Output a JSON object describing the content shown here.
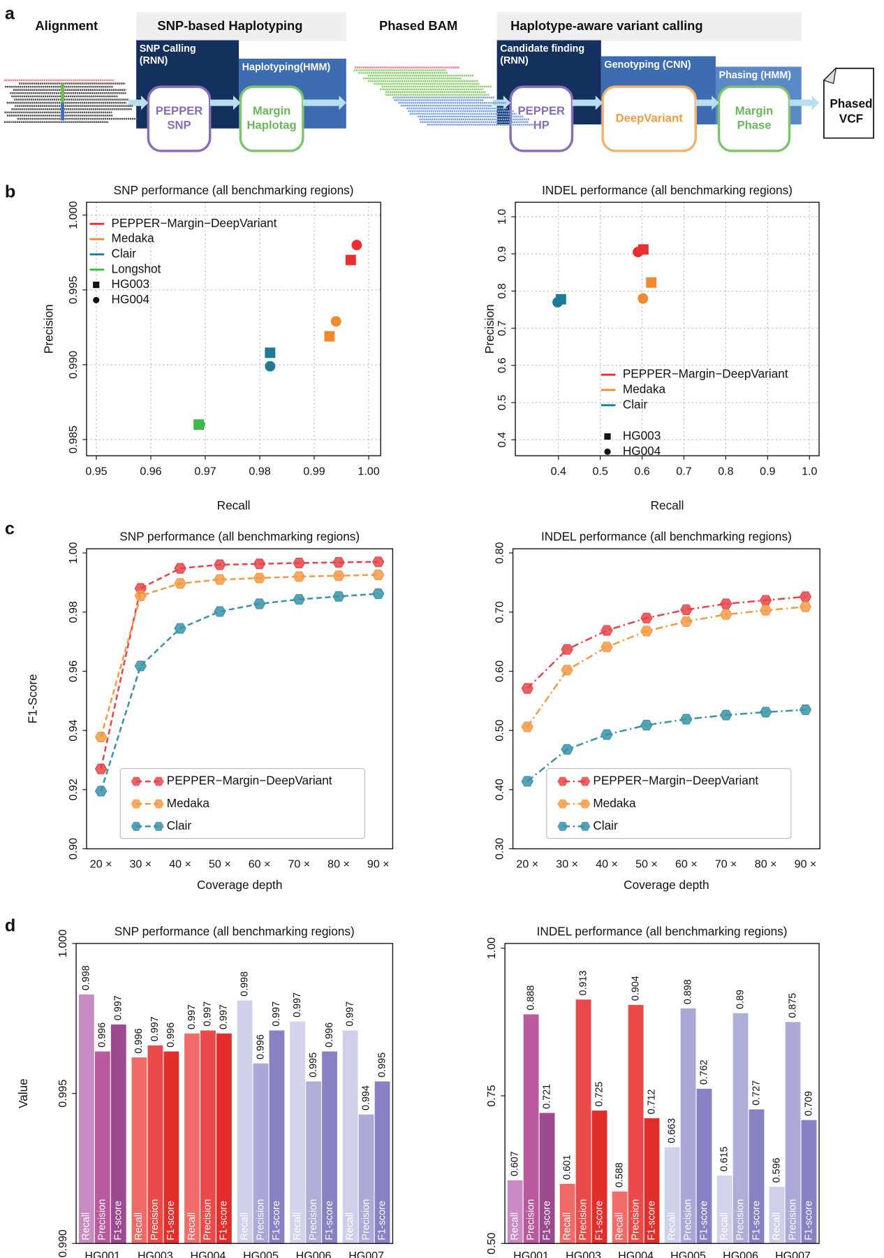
{
  "panel_labels": [
    "a",
    "b",
    "c",
    "d"
  ],
  "diagram": {
    "headers": [
      "Alignment",
      "SNP-based Haplotyping",
      "Phased BAM",
      "Haplotype-aware variant calling"
    ],
    "steps": [
      [
        "SNP Calling",
        "(RNN)"
      ],
      [
        "Haplotyping(HMM)"
      ],
      [
        "Candidate finding",
        "(RNN)"
      ],
      [
        "Genotyping (CNN)"
      ],
      [
        "Phasing (HMM)"
      ]
    ],
    "tools": [
      [
        "PEPPER",
        "SNP"
      ],
      [
        "Margin",
        "Haplotag"
      ],
      [
        "PEPPER",
        "HP"
      ],
      [
        "DeepVariant"
      ],
      [
        "Margin",
        "Phase"
      ]
    ],
    "output": [
      "Phased",
      "VCF"
    ]
  },
  "chart_data": [
    {
      "type": "scatter",
      "title": "SNP performance (all benchmarking regions)",
      "x_label": "Recall",
      "y_label": "Precision",
      "xlim": [
        0.9482,
        1.0022
      ],
      "ylim": [
        0.98392,
        1.00086
      ],
      "xticks": [
        0.95,
        0.96,
        0.97,
        0.98,
        0.99,
        {
          "value": 1,
          "label": "1.00"
        }
      ],
      "yticks": [
        0.985,
        {
          "value": 0.99,
          "label": "0.990"
        },
        0.995,
        {
          "value": 1,
          "label": "1.000"
        }
      ],
      "grid": true,
      "legend": "upper left",
      "series": [
        {
          "name": "PEPPER−Margin−DeepVariant",
          "color": "#e8312f",
          "x": [
            0.9967,
            0.9978
          ],
          "values": [
            0.997,
            0.998
          ]
        },
        {
          "name": "Medaka",
          "color": "#f08a2c",
          "x": [
            0.9928,
            0.994
          ],
          "values": [
            0.9919,
            0.9929
          ]
        },
        {
          "name": "Clair",
          "color": "#1f7a94",
          "x": [
            0.9819,
            0.9819
          ],
          "values": [
            0.9908,
            0.9899
          ]
        },
        {
          "name": "Longshot",
          "color": "#3cb94a",
          "x": [
            0.9688,
            0.969
          ],
          "values": [
            0.986,
            0.986
          ]
        }
      ],
      "markers": [
        {
          "name": "HG003",
          "shape": "square"
        },
        {
          "name": "HG004",
          "shape": "circle"
        }
      ]
    },
    {
      "type": "scatter",
      "title": "INDEL performance (all benchmarking regions)",
      "x_label": "Recall",
      "y_label": "Precision",
      "xlim": [
        0.297,
        1.023
      ],
      "ylim": [
        0.357,
        1.039
      ],
      "xticks": [
        0.4,
        0.5,
        0.6,
        0.7,
        0.8,
        0.9,
        {
          "value": 1,
          "label": "1.0"
        }
      ],
      "yticks": [
        0.4,
        0.5,
        0.6,
        0.7,
        0.8,
        0.9,
        {
          "value": 1,
          "label": "1.0"
        }
      ],
      "grid": true,
      "legend": "lower right",
      "series": [
        {
          "name": "PEPPER−Margin−DeepVariant",
          "color": "#e8312f",
          "x": [
            0.603,
            0.59
          ],
          "values": [
            0.912,
            0.905
          ]
        },
        {
          "name": "Medaka",
          "color": "#f08a2c",
          "x": [
            0.622,
            0.602
          ],
          "values": [
            0.823,
            0.78
          ]
        },
        {
          "name": "Clair",
          "color": "#1f7a94",
          "x": [
            0.406,
            0.398
          ],
          "values": [
            0.778,
            0.77
          ]
        }
      ],
      "markers": [
        {
          "name": "HG003",
          "shape": "square"
        },
        {
          "name": "HG004",
          "shape": "circle"
        }
      ]
    },
    {
      "type": "line",
      "title": "SNP performance (all benchmarking regions)",
      "x_label": "Coverage depth",
      "y_label": "F1-Score",
      "categories": [
        "20 ×",
        "30 ×",
        "40 ×",
        "50 ×",
        "60 ×",
        "70 ×",
        "80 ×",
        "90 ×"
      ],
      "ylim": [
        0.9,
        1.0014
      ],
      "yticks": [
        {
          "value": 0.9,
          "label": "0.90"
        },
        0.92,
        0.94,
        0.96,
        0.98,
        {
          "value": 1,
          "label": "1.00"
        }
      ],
      "line_style": "dashed",
      "legend": "lower left",
      "series": [
        {
          "name": "PEPPER−Margin−DeepVariant",
          "color": "#e5454a",
          "values": [
            0.927,
            0.988,
            0.9948,
            0.996,
            0.9963,
            0.9966,
            0.9968,
            0.997
          ]
        },
        {
          "name": "Medaka",
          "color": "#f39a45",
          "values": [
            0.9378,
            0.9855,
            0.9897,
            0.991,
            0.9915,
            0.992,
            0.9923,
            0.9926
          ]
        },
        {
          "name": "Clair",
          "color": "#3a93a9",
          "values": [
            0.9195,
            0.9618,
            0.9745,
            0.9802,
            0.9828,
            0.9843,
            0.9853,
            0.9862
          ]
        }
      ]
    },
    {
      "type": "line",
      "title": "INDEL performance (all benchmarking regions)",
      "x_label": "Coverage depth",
      "categories": [
        "20 ×",
        "30 ×",
        "40 ×",
        "50 ×",
        "60 ×",
        "70 ×",
        "80 ×",
        "90 ×"
      ],
      "ylim": [
        0.3,
        0.807
      ],
      "yticks": [
        {
          "value": 0.3,
          "label": "0.30"
        },
        {
          "value": 0.4,
          "label": "0.40"
        },
        {
          "value": 0.5,
          "label": "0.50"
        },
        {
          "value": 0.6,
          "label": "0.60"
        },
        {
          "value": 0.7,
          "label": "0.70"
        },
        {
          "value": 0.8,
          "label": "0.80"
        }
      ],
      "line_style": "dash-dot",
      "legend": "lower left",
      "series": [
        {
          "name": "PEPPER−Margin−DeepVariant",
          "color": "#e5454a",
          "values": [
            0.571,
            0.637,
            0.669,
            0.69,
            0.704,
            0.714,
            0.72,
            0.726
          ]
        },
        {
          "name": "Medaka",
          "color": "#f39a45",
          "values": [
            0.506,
            0.602,
            0.641,
            0.668,
            0.684,
            0.696,
            0.703,
            0.709
          ]
        },
        {
          "name": "Clair",
          "color": "#3a93a9",
          "values": [
            0.414,
            0.468,
            0.493,
            0.509,
            0.519,
            0.526,
            0.531,
            0.535
          ]
        }
      ]
    },
    {
      "type": "bar",
      "title": "SNP performance (all benchmarking regions)",
      "y_label": "Value",
      "categories": [
        "HG001",
        "HG003",
        "HG004",
        "HG005",
        "HG006",
        "HG007"
      ],
      "ylim": [
        0.99,
        1
      ],
      "yticks": [
        {
          "value": 0.99,
          "label": "0.990"
        },
        0.995,
        {
          "value": 1,
          "label": "1.000"
        }
      ],
      "series": [
        {
          "name": "Recall",
          "colors": [
            "#c98bc3",
            "#ef6b67",
            "#f26d6a",
            "#cfd0ea",
            "#d3d3ec",
            "#d0cfe9"
          ],
          "values": [
            0.9983,
            0.9962,
            0.997,
            0.9981,
            0.9974,
            0.9971
          ],
          "value_labels": [
            "0.998",
            "0.996",
            "0.997",
            "0.998",
            "0.997",
            "0.997"
          ]
        },
        {
          "name": "Precision",
          "colors": [
            "#b85a9d",
            "#ea4a49",
            "#ea4a49",
            "#a9a8d6",
            "#aeaed8",
            "#acaad7"
          ],
          "values": [
            0.9964,
            0.9966,
            0.9971,
            0.996,
            0.9954,
            0.9943
          ],
          "value_labels": [
            "0.996",
            "0.997",
            "0.997",
            "0.996",
            "0.995",
            "0.994"
          ]
        },
        {
          "name": "F1-score",
          "colors": [
            "#9b4a8f",
            "#e32d2a",
            "#e32d2a",
            "#8682c3",
            "#8682c3",
            "#8682c3"
          ],
          "values": [
            0.9973,
            0.9964,
            0.997,
            0.9971,
            0.9964,
            0.9954
          ],
          "value_labels": [
            "0.997",
            "0.996",
            "0.997",
            "0.997",
            "0.996",
            "0.995"
          ]
        }
      ]
    },
    {
      "type": "bar",
      "title": "INDEL performance (all benchmarking regions)",
      "categories": [
        "HG001",
        "HG003",
        "HG004",
        "HG005",
        "HG006",
        "HG007"
      ],
      "ylim": [
        0.5,
        1.008
      ],
      "yticks": [
        {
          "value": 0.5,
          "label": "0.50"
        },
        0.75,
        {
          "value": 1,
          "label": "1.00"
        }
      ],
      "series": [
        {
          "name": "Recall",
          "colors": [
            "#c98bc3",
            "#ef6b67",
            "#f26d6a",
            "#cfd0ea",
            "#d3d3ec",
            "#d0cfe9"
          ],
          "values": [
            0.607,
            0.601,
            0.588,
            0.663,
            0.615,
            0.596
          ]
        },
        {
          "name": "Precision",
          "colors": [
            "#b85a9d",
            "#ea4a49",
            "#ea4a49",
            "#a9a8d6",
            "#aeaed8",
            "#acaad7"
          ],
          "values": [
            0.888,
            0.913,
            0.904,
            0.898,
            0.89,
            0.875
          ]
        },
        {
          "name": "F1-score",
          "colors": [
            "#9b4a8f",
            "#e32d2a",
            "#e32d2a",
            "#8682c3",
            "#8682c3",
            "#8682c3"
          ],
          "values": [
            0.721,
            0.725,
            0.712,
            0.762,
            0.727,
            0.709
          ]
        }
      ]
    }
  ]
}
